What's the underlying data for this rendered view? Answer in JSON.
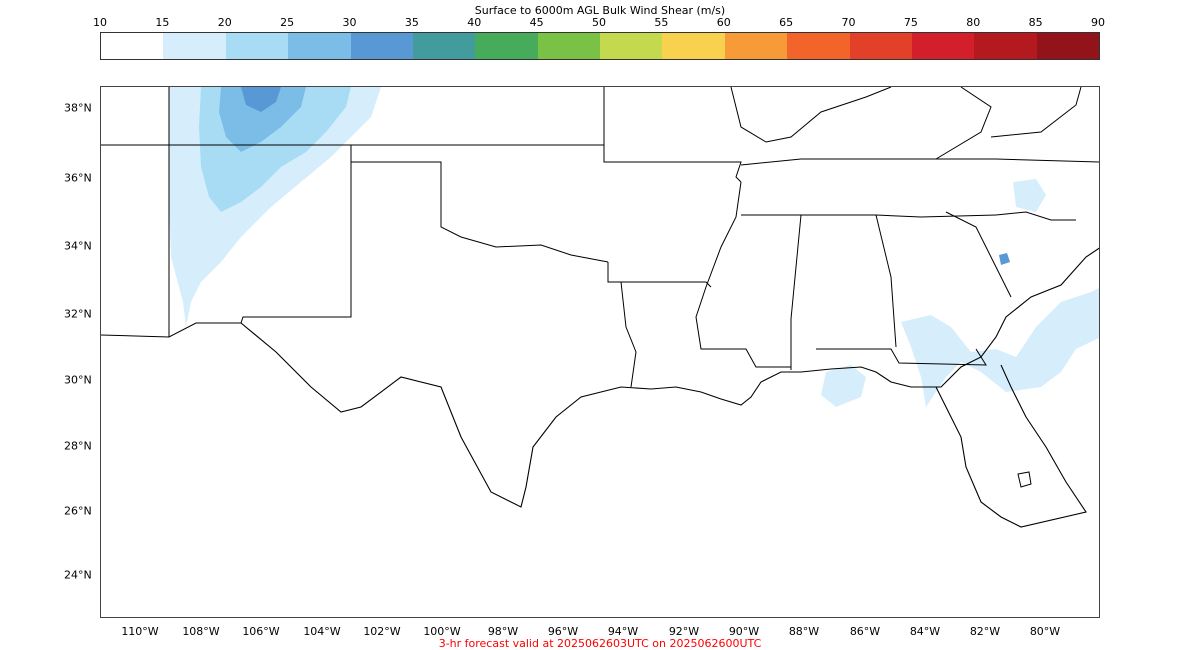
{
  "colorbar": {
    "title": "Surface to 6000m AGL Bulk Wind Shear (m/s)",
    "ticks": [
      "10",
      "15",
      "20",
      "25",
      "30",
      "35",
      "40",
      "45",
      "50",
      "55",
      "60",
      "65",
      "70",
      "75",
      "80",
      "85",
      "90"
    ],
    "colors": [
      "#ffffff",
      "#d6eefb",
      "#a8dcf5",
      "#7cbde8",
      "#5899d5",
      "#429b9c",
      "#47ab5c",
      "#79c246",
      "#c4d94d",
      "#f8d24e",
      "#f79a38",
      "#f2642a",
      "#e3402a",
      "#d21f2b",
      "#b3191e",
      "#92141a"
    ]
  },
  "map": {
    "lat_labels": [
      "38°N",
      "36°N",
      "34°N",
      "32°N",
      "30°N",
      "28°N",
      "26°N",
      "24°N"
    ],
    "lon_labels": [
      "110°W",
      "108°W",
      "106°W",
      "104°W",
      "102°W",
      "100°W",
      "98°W",
      "96°W",
      "94°W",
      "92°W",
      "90°W",
      "88°W",
      "86°W",
      "84°W",
      "82°W",
      "80°W"
    ]
  },
  "footer": "3-hr forecast valid at 2025062603UTC on 2025062600UTC"
}
